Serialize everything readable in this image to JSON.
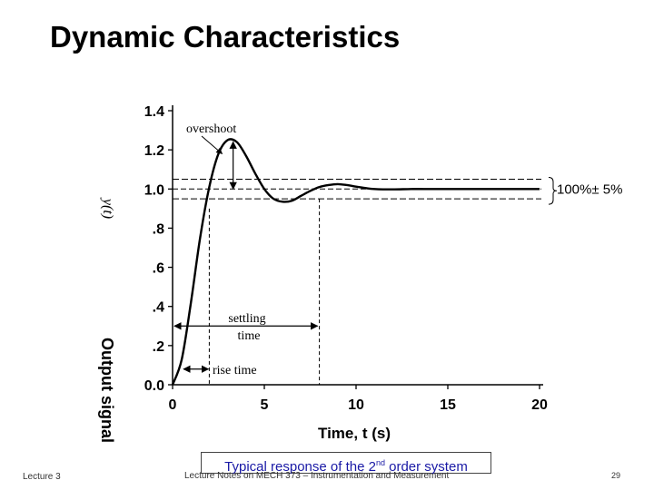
{
  "slide": {
    "title": "Dynamic Characteristics",
    "caption_main": "Typical response of the 2",
    "caption_sup": "nd",
    "caption_rest": " order system",
    "footer_left": "Lecture 3",
    "footer_center": "Lecture Notes on MECH 373 – Instrumentation and Measurement",
    "page_number": "29"
  },
  "chart_data": {
    "type": "line",
    "title": "",
    "xlabel": "Time, t (s)",
    "ylabel": "Output signal",
    "ylabel_partial": "y(t)",
    "xlim": [
      0,
      20
    ],
    "ylim": [
      0,
      1.4
    ],
    "x_ticks": [
      "0",
      "5",
      "10",
      "15",
      "20"
    ],
    "y_ticks": [
      "0.0",
      ".2",
      ".4",
      ".6",
      ".8",
      "1.0",
      "1.2",
      "1.4"
    ],
    "grid": false,
    "series": [
      {
        "x": [
          0,
          0.5,
          1,
          1.5,
          2,
          2.5,
          3,
          3.5,
          4,
          4.5,
          5,
          5.5,
          6,
          6.5,
          7,
          7.5,
          8,
          8.5,
          9,
          9.5,
          10,
          10.5,
          11,
          12,
          13,
          14,
          15,
          16,
          17,
          18,
          19,
          20
        ],
        "y": [
          0,
          0.13,
          0.42,
          0.75,
          1.01,
          1.18,
          1.25,
          1.24,
          1.17,
          1.08,
          1.0,
          0.95,
          0.935,
          0.94,
          0.965,
          0.99,
          1.01,
          1.02,
          1.025,
          1.02,
          1.012,
          1.005,
          1.0,
          0.998,
          1.0,
          1.0,
          1.0,
          1.0,
          1.0,
          1.0,
          1.0,
          1.0
        ]
      }
    ],
    "band": {
      "upper": 1.05,
      "lower": 0.95,
      "label": "100%± 5%"
    },
    "annotations": {
      "overshoot": "overshoot",
      "settling_line1": "settling",
      "settling_line2": "time",
      "rise_time": "rise time"
    },
    "markers": {
      "overshoot_peak": {
        "x": 3.3,
        "y": 1.25
      },
      "rise_time_start": 0.6,
      "rise_time_end": 2.0,
      "settling_start": 0,
      "settling_end": 8.0
    }
  }
}
